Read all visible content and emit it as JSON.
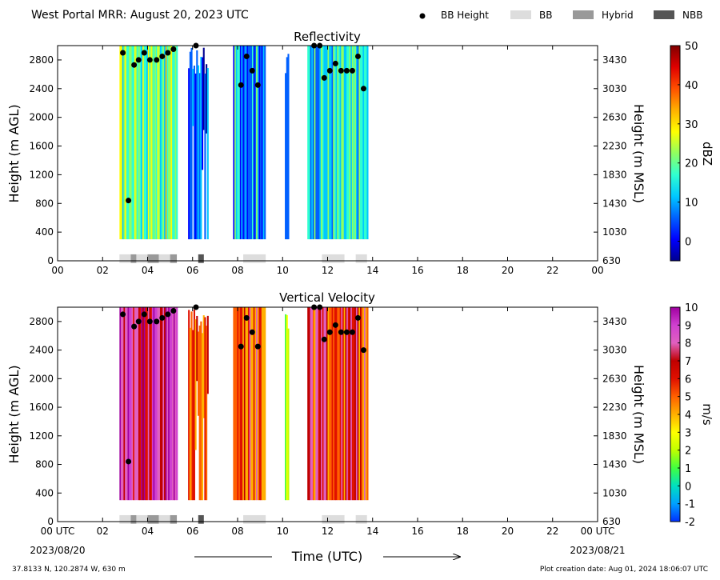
{
  "header": {
    "title": "West Portal MRR:  August 20, 2023 UTC",
    "legend": [
      {
        "label": "BB Height",
        "kind": "dot",
        "color": "#000000"
      },
      {
        "label": "BB",
        "kind": "box",
        "color": "#dddddd"
      },
      {
        "label": "Hybrid",
        "kind": "box",
        "color": "#999999"
      },
      {
        "label": "NBB",
        "kind": "box",
        "color": "#555555"
      }
    ]
  },
  "footer": {
    "location": "37.8133 N, 120.2874 W, 630 m",
    "created": "Plot creation date: Aug 01, 2024 18:06:07 UTC",
    "xlabel": "Time (UTC)",
    "start_date": "2023/08/20",
    "end_date": "2023/08/21"
  },
  "chart_data": [
    {
      "type": "heatmap",
      "title": "Reflectivity",
      "ylabel_left": "Height (m AGL)",
      "ylabel_right": "Height (m MSL)",
      "colorbar_label": "dBZ",
      "colorbar_ticks": [
        "50",
        "40",
        "30",
        "20",
        "10",
        "0"
      ],
      "colorbar_range": [
        -5,
        50
      ],
      "xlim": [
        0,
        24
      ],
      "ylim": [
        0,
        3000
      ],
      "x_ticks": [
        "00",
        "02",
        "04",
        "06",
        "08",
        "10",
        "12",
        "14",
        "16",
        "18",
        "20",
        "22",
        "00"
      ],
      "y_ticks": [
        0,
        400,
        800,
        1200,
        1600,
        2000,
        2400,
        2800
      ],
      "y_ticks_right": [
        "630",
        "1030",
        "1430",
        "1830",
        "2230",
        "2630",
        "3030",
        "3430"
      ],
      "colorscale": [
        "#00008f",
        "#0000ff",
        "#0060ff",
        "#00c8ff",
        "#30ffd0",
        "#90ff60",
        "#ffff00",
        "#ffb000",
        "#ff5000",
        "#e00000",
        "#800000"
      ],
      "precip_blocks": [
        {
          "start": 2.75,
          "end": 5.3,
          "value": 22
        },
        {
          "start": 5.8,
          "end": 6.65,
          "value": 5
        },
        {
          "start": 7.8,
          "end": 9.2,
          "value": 12
        },
        {
          "start": 10.1,
          "end": 10.25,
          "value": 2
        },
        {
          "start": 11.1,
          "end": 13.8,
          "value": 15
        }
      ],
      "bb_heights": [
        {
          "x": 2.9,
          "y": 2900
        },
        {
          "x": 3.15,
          "y": 840
        },
        {
          "x": 3.4,
          "y": 2730
        },
        {
          "x": 3.6,
          "y": 2800
        },
        {
          "x": 3.85,
          "y": 2900
        },
        {
          "x": 4.1,
          "y": 2800
        },
        {
          "x": 4.4,
          "y": 2800
        },
        {
          "x": 4.65,
          "y": 2850
        },
        {
          "x": 4.9,
          "y": 2900
        },
        {
          "x": 5.15,
          "y": 2950
        },
        {
          "x": 6.15,
          "y": 3000
        },
        {
          "x": 8.15,
          "y": 2450
        },
        {
          "x": 8.4,
          "y": 2850
        },
        {
          "x": 8.65,
          "y": 2650
        },
        {
          "x": 8.9,
          "y": 2450
        },
        {
          "x": 11.4,
          "y": 3000
        },
        {
          "x": 11.65,
          "y": 3000
        },
        {
          "x": 11.85,
          "y": 2550
        },
        {
          "x": 12.1,
          "y": 2650
        },
        {
          "x": 12.35,
          "y": 2750
        },
        {
          "x": 12.6,
          "y": 2650
        },
        {
          "x": 12.85,
          "y": 2650
        },
        {
          "x": 13.1,
          "y": 2650
        },
        {
          "x": 13.35,
          "y": 2850
        },
        {
          "x": 13.6,
          "y": 2400
        }
      ],
      "bb_type_bar": [
        {
          "start": 2.75,
          "end": 3.25,
          "type": "BB"
        },
        {
          "start": 3.25,
          "end": 3.5,
          "type": "Hybrid"
        },
        {
          "start": 3.5,
          "end": 4.0,
          "type": "BB"
        },
        {
          "start": 4.0,
          "end": 4.5,
          "type": "Hybrid"
        },
        {
          "start": 4.5,
          "end": 5.0,
          "type": "BB"
        },
        {
          "start": 5.0,
          "end": 5.3,
          "type": "Hybrid"
        },
        {
          "start": 6.25,
          "end": 6.5,
          "type": "NBB"
        },
        {
          "start": 8.25,
          "end": 9.25,
          "type": "BB"
        },
        {
          "start": 11.75,
          "end": 12.75,
          "type": "BB"
        },
        {
          "start": 13.25,
          "end": 13.75,
          "type": "BB"
        }
      ]
    },
    {
      "type": "heatmap",
      "title": "Vertical Velocity",
      "ylabel_left": "Height (m AGL)",
      "ylabel_right": "Height (m MSL)",
      "colorbar_label": "m/s",
      "colorbar_ticks": [
        "10",
        "9",
        "8",
        "7",
        "6",
        "5",
        "4",
        "3",
        "2",
        "1",
        "0",
        "-1",
        "-2"
      ],
      "colorbar_range": [
        -2,
        10
      ],
      "xlim": [
        0,
        24
      ],
      "ylim": [
        0,
        3000
      ],
      "x_ticks": [
        "00 UTC",
        "02",
        "04",
        "06",
        "08",
        "10",
        "12",
        "14",
        "16",
        "18",
        "20",
        "22",
        "00 UTC"
      ],
      "y_ticks": [
        0,
        400,
        800,
        1200,
        1600,
        2000,
        2400,
        2800
      ],
      "y_ticks_right": [
        "630",
        "1030",
        "1430",
        "1830",
        "2230",
        "2630",
        "3030",
        "3430"
      ],
      "colorscale": [
        "#0030ff",
        "#00a0ff",
        "#00e0c0",
        "#40ff40",
        "#c0ff00",
        "#ffff00",
        "#ffb000",
        "#ff6000",
        "#e01000",
        "#c00000",
        "#e060c0",
        "#d040d0",
        "#a000a0"
      ],
      "precip_blocks": [
        {
          "start": 2.75,
          "end": 5.3,
          "value": 8
        },
        {
          "start": 5.8,
          "end": 6.65,
          "value": 5.5
        },
        {
          "start": 7.8,
          "end": 9.2,
          "value": 5.5
        },
        {
          "start": 10.1,
          "end": 10.25,
          "value": 3
        },
        {
          "start": 11.1,
          "end": 13.8,
          "value": 6
        }
      ],
      "bb_heights": [
        {
          "x": 2.9,
          "y": 2900
        },
        {
          "x": 3.15,
          "y": 840
        },
        {
          "x": 3.4,
          "y": 2730
        },
        {
          "x": 3.6,
          "y": 2800
        },
        {
          "x": 3.85,
          "y": 2900
        },
        {
          "x": 4.1,
          "y": 2800
        },
        {
          "x": 4.4,
          "y": 2800
        },
        {
          "x": 4.65,
          "y": 2850
        },
        {
          "x": 4.9,
          "y": 2900
        },
        {
          "x": 5.15,
          "y": 2950
        },
        {
          "x": 6.15,
          "y": 3000
        },
        {
          "x": 8.15,
          "y": 2450
        },
        {
          "x": 8.4,
          "y": 2850
        },
        {
          "x": 8.65,
          "y": 2650
        },
        {
          "x": 8.9,
          "y": 2450
        },
        {
          "x": 11.4,
          "y": 3000
        },
        {
          "x": 11.65,
          "y": 3000
        },
        {
          "x": 11.85,
          "y": 2550
        },
        {
          "x": 12.1,
          "y": 2650
        },
        {
          "x": 12.35,
          "y": 2750
        },
        {
          "x": 12.6,
          "y": 2650
        },
        {
          "x": 12.85,
          "y": 2650
        },
        {
          "x": 13.1,
          "y": 2650
        },
        {
          "x": 13.35,
          "y": 2850
        },
        {
          "x": 13.6,
          "y": 2400
        }
      ],
      "bb_type_bar": [
        {
          "start": 2.75,
          "end": 3.25,
          "type": "BB"
        },
        {
          "start": 3.25,
          "end": 3.5,
          "type": "Hybrid"
        },
        {
          "start": 3.5,
          "end": 4.0,
          "type": "BB"
        },
        {
          "start": 4.0,
          "end": 4.5,
          "type": "Hybrid"
        },
        {
          "start": 4.5,
          "end": 5.0,
          "type": "BB"
        },
        {
          "start": 5.0,
          "end": 5.3,
          "type": "Hybrid"
        },
        {
          "start": 6.25,
          "end": 6.5,
          "type": "NBB"
        },
        {
          "start": 8.25,
          "end": 9.25,
          "type": "BB"
        },
        {
          "start": 11.75,
          "end": 12.75,
          "type": "BB"
        },
        {
          "start": 13.25,
          "end": 13.75,
          "type": "BB"
        }
      ]
    }
  ]
}
